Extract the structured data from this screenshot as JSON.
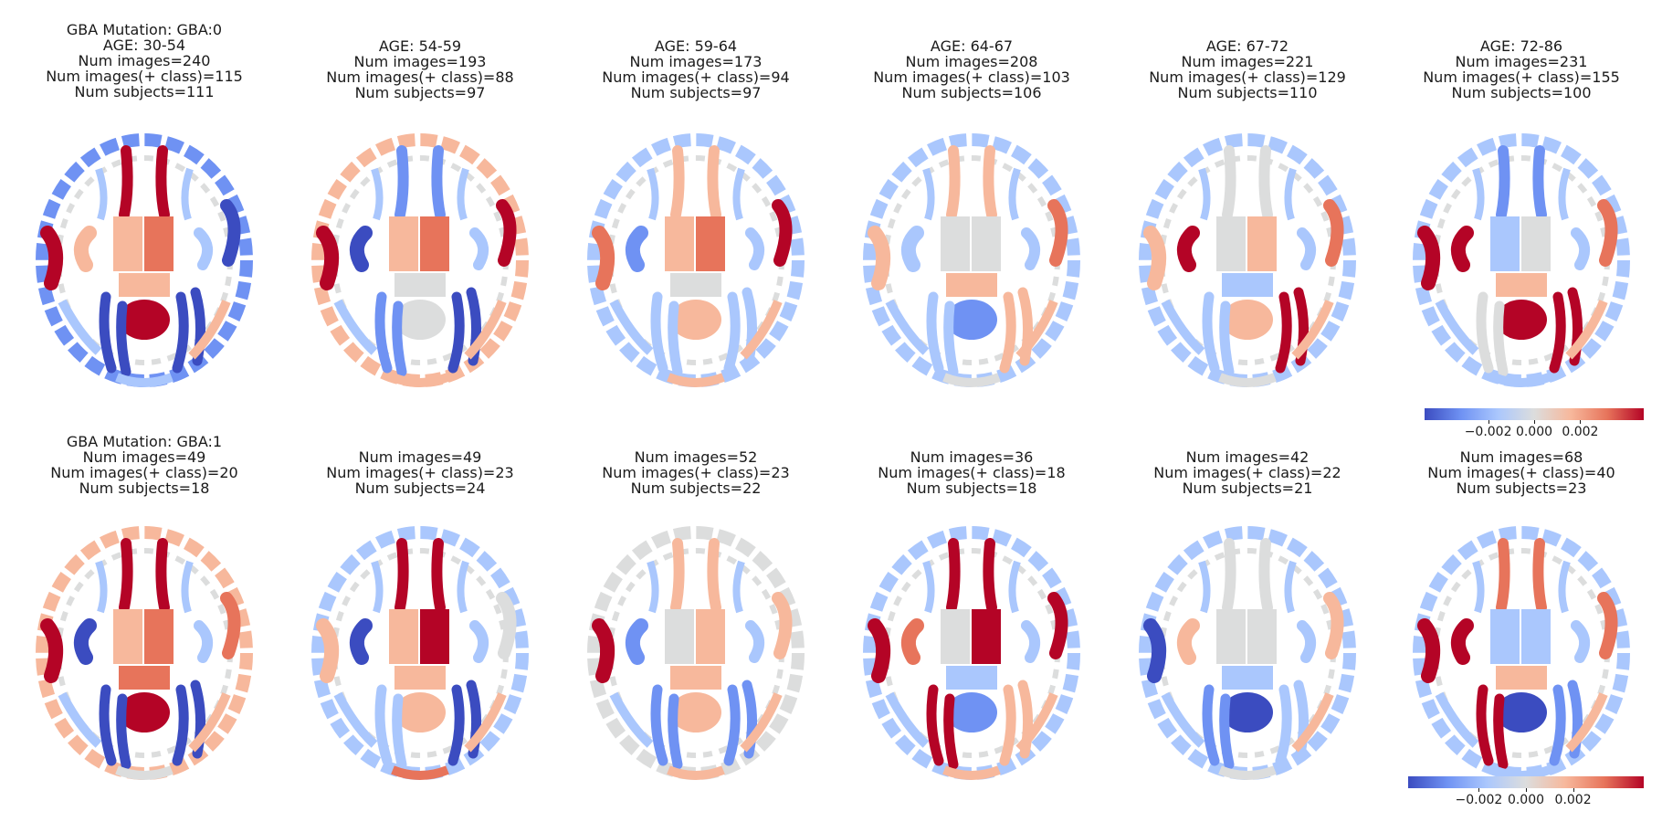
{
  "colors": {
    "strong_neg": "#3b4cc0",
    "neg": "#6f92f3",
    "weak_neg": "#aac7fd",
    "neutral": "#dcdddd",
    "weak_pos": "#f7b89c",
    "pos": "#e7745b",
    "strong_pos": "#b40426"
  },
  "rows": [
    {
      "panels": [
        {
          "lines": [
            "GBA Mutation: GBA:0",
            "AGE: 30-54",
            "Num images=240",
            "Num images(+ class)=115",
            "Num subjects=111"
          ],
          "regions": {
            "gyri": "neg",
            "frontal": "strong_pos",
            "insula": "weak_pos",
            "temporal": "strong_pos",
            "thal_l": "weak_pos",
            "thal_r": "pos",
            "midbrain": "weak_pos",
            "cereb": "strong_pos",
            "occ_l": "strong_neg",
            "occ_r": "strong_neg",
            "lat_r": "strong_neg",
            "bottom": "weak_neg"
          }
        },
        {
          "lines": [
            "AGE: 54-59",
            "Num images=193",
            "Num images(+ class)=88",
            "Num subjects=97"
          ],
          "regions": {
            "gyri": "weak_pos",
            "frontal": "neg",
            "insula": "strong_neg",
            "temporal": "strong_pos",
            "thal_l": "weak_pos",
            "thal_r": "pos",
            "midbrain": "neutral",
            "cereb": "neutral",
            "occ_l": "neg",
            "occ_r": "strong_neg",
            "lat_r": "strong_pos",
            "bottom": "weak_pos"
          }
        },
        {
          "lines": [
            "AGE: 59-64",
            "Num images=173",
            "Num images(+ class)=94",
            "Num subjects=97"
          ],
          "regions": {
            "gyri": "weak_neg",
            "frontal": "weak_pos",
            "insula": "neg",
            "temporal": "pos",
            "thal_l": "weak_pos",
            "thal_r": "pos",
            "midbrain": "neutral",
            "cereb": "weak_pos",
            "occ_l": "weak_neg",
            "occ_r": "weak_neg",
            "lat_r": "strong_pos",
            "bottom": "weak_pos"
          }
        },
        {
          "lines": [
            "AGE: 64-67",
            "Num images=208",
            "Num images(+ class)=103",
            "Num subjects=106"
          ],
          "regions": {
            "gyri": "weak_neg",
            "frontal": "weak_pos",
            "insula": "weak_neg",
            "temporal": "weak_pos",
            "thal_l": "neutral",
            "thal_r": "neutral",
            "midbrain": "weak_pos",
            "cereb": "neg",
            "occ_l": "weak_neg",
            "occ_r": "weak_pos",
            "lat_r": "pos",
            "bottom": "neutral"
          }
        },
        {
          "lines": [
            "AGE: 67-72",
            "Num images=221",
            "Num images(+ class)=129",
            "Num subjects=110"
          ],
          "regions": {
            "gyri": "weak_neg",
            "frontal": "neutral",
            "insula": "strong_pos",
            "temporal": "weak_pos",
            "thal_l": "neutral",
            "thal_r": "weak_pos",
            "midbrain": "weak_neg",
            "cereb": "weak_pos",
            "occ_l": "weak_neg",
            "occ_r": "strong_pos",
            "lat_r": "pos",
            "bottom": "neutral"
          }
        },
        {
          "lines": [
            "AGE: 72-86",
            "Num images=231",
            "Num images(+ class)=155",
            "Num subjects=100"
          ],
          "regions": {
            "gyri": "weak_neg",
            "frontal": "neg",
            "insula": "strong_pos",
            "temporal": "strong_pos",
            "thal_l": "weak_neg",
            "thal_r": "neutral",
            "midbrain": "weak_pos",
            "cereb": "strong_pos",
            "occ_l": "neutral",
            "occ_r": "strong_pos",
            "lat_r": "pos",
            "bottom": "weak_neg"
          }
        }
      ],
      "colorbar": {
        "ticks": [
          "−0.002",
          "0.000",
          "0.002"
        ]
      }
    },
    {
      "panels": [
        {
          "lines": [
            "GBA Mutation: GBA:1",
            "Num images=49",
            "Num images(+ class)=20",
            "Num subjects=18"
          ],
          "regions": {
            "gyri": "weak_pos",
            "frontal": "strong_pos",
            "insula": "strong_neg",
            "temporal": "strong_pos",
            "thal_l": "weak_pos",
            "thal_r": "pos",
            "midbrain": "pos",
            "cereb": "strong_pos",
            "occ_l": "strong_neg",
            "occ_r": "strong_neg",
            "lat_r": "pos",
            "bottom": "neutral"
          }
        },
        {
          "lines": [
            "Num images=49",
            "Num images(+ class)=23",
            "Num subjects=24"
          ],
          "regions": {
            "gyri": "weak_neg",
            "frontal": "strong_pos",
            "insula": "strong_neg",
            "temporal": "weak_pos",
            "thal_l": "weak_pos",
            "thal_r": "strong_pos",
            "midbrain": "weak_pos",
            "cereb": "weak_pos",
            "occ_l": "weak_neg",
            "occ_r": "strong_neg",
            "lat_r": "neutral",
            "bottom": "pos"
          }
        },
        {
          "lines": [
            "Num images=52",
            "Num images(+ class)=23",
            "Num subjects=22"
          ],
          "regions": {
            "gyri": "neutral",
            "frontal": "weak_pos",
            "insula": "neg",
            "temporal": "strong_pos",
            "thal_l": "neutral",
            "thal_r": "weak_pos",
            "midbrain": "weak_pos",
            "cereb": "weak_pos",
            "occ_l": "neg",
            "occ_r": "neg",
            "lat_r": "weak_pos",
            "bottom": "weak_pos"
          }
        },
        {
          "lines": [
            "Num images=36",
            "Num images(+ class)=18",
            "Num subjects=18"
          ],
          "regions": {
            "gyri": "weak_neg",
            "frontal": "strong_pos",
            "insula": "pos",
            "temporal": "strong_pos",
            "thal_l": "neutral",
            "thal_r": "strong_pos",
            "midbrain": "weak_neg",
            "cereb": "neg",
            "occ_l": "strong_pos",
            "occ_r": "weak_pos",
            "lat_r": "strong_pos",
            "bottom": "weak_pos"
          }
        },
        {
          "lines": [
            "Num images=42",
            "Num images(+ class)=22",
            "Num subjects=21"
          ],
          "regions": {
            "gyri": "weak_neg",
            "frontal": "neutral",
            "insula": "weak_pos",
            "temporal": "strong_neg",
            "thal_l": "neutral",
            "thal_r": "neutral",
            "midbrain": "weak_neg",
            "cereb": "strong_neg",
            "occ_l": "neg",
            "occ_r": "weak_neg",
            "lat_r": "weak_pos",
            "bottom": "neutral"
          }
        },
        {
          "lines": [
            "Num images=68",
            "Num images(+ class)=40",
            "Num subjects=23"
          ],
          "regions": {
            "gyri": "weak_neg",
            "frontal": "pos",
            "insula": "strong_pos",
            "temporal": "strong_pos",
            "thal_l": "weak_neg",
            "thal_r": "weak_neg",
            "midbrain": "weak_pos",
            "cereb": "strong_neg",
            "occ_l": "strong_pos",
            "occ_r": "neg",
            "lat_r": "pos",
            "bottom": "weak_neg"
          }
        }
      ],
      "colorbar": {
        "ticks": [
          "−0.002",
          "0.000",
          "0.002"
        ]
      }
    }
  ]
}
